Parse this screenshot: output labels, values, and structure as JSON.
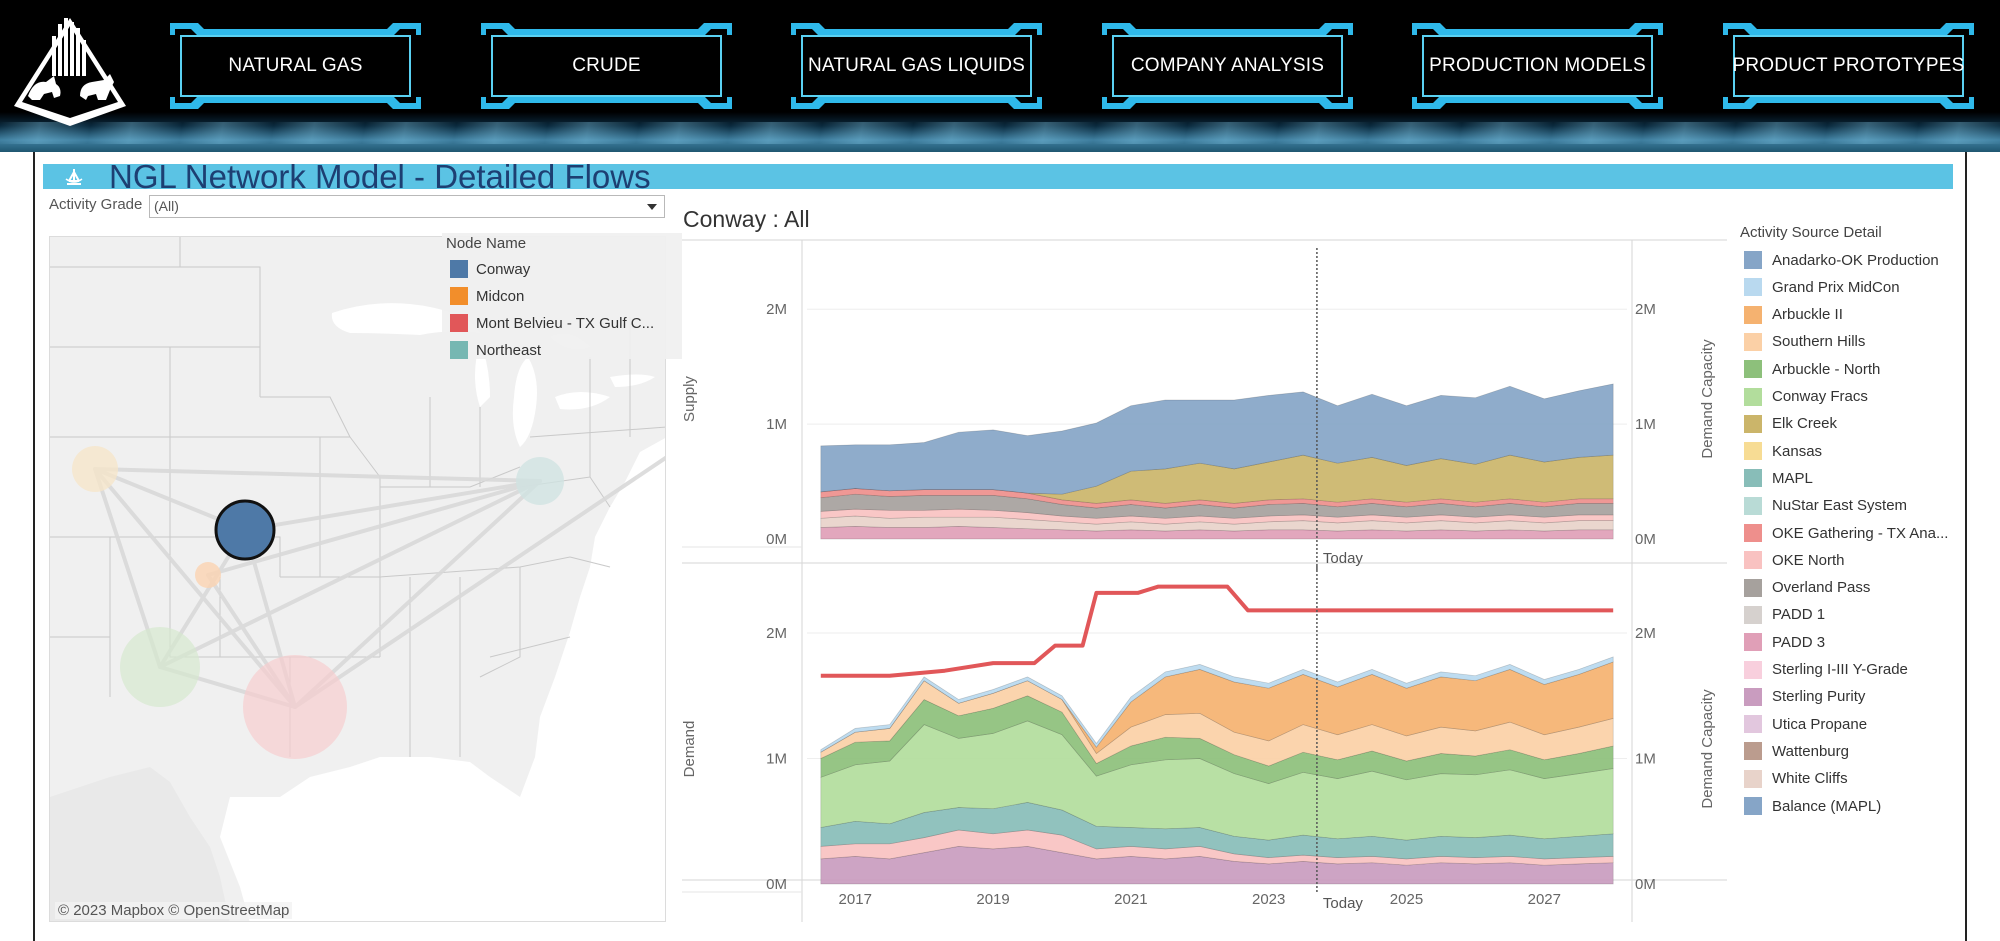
{
  "nav": {
    "items": [
      {
        "label": "NATURAL GAS"
      },
      {
        "label": "CRUDE"
      },
      {
        "label": "NATURAL GAS LIQUIDS"
      },
      {
        "label": "COMPANY ANALYSIS"
      },
      {
        "label": "PRODUCTION MODELS"
      },
      {
        "label": "PRODUCT PROTOTYPES"
      }
    ]
  },
  "dashboard": {
    "title": "NGL Network Model - Detailed Flows",
    "filter": {
      "label": "Activity Grade",
      "value": "(All)"
    },
    "map": {
      "attribution": "© 2023 Mapbox  © OpenStreetMap"
    },
    "node_legend": {
      "title": "Node Name",
      "items": [
        {
          "label": "Conway",
          "color": "#4e79a7"
        },
        {
          "label": "Midcon",
          "color": "#f28e2b"
        },
        {
          "label": "Mont Belvieu - TX Gulf C...",
          "color": "#e15759"
        },
        {
          "label": "Northeast",
          "color": "#76b7b2"
        }
      ]
    },
    "chart_title": "Conway : All",
    "source_legend": {
      "title": "Activity Source Detail",
      "items": [
        {
          "label": "Anadarko-OK Production",
          "color": "#86a5c7"
        },
        {
          "label": "Grand Prix MidCon",
          "color": "#b9d9ef"
        },
        {
          "label": "Arbuckle II",
          "color": "#f5b270"
        },
        {
          "label": "Southern Hills",
          "color": "#fbd0a6"
        },
        {
          "label": "Arbuckle - North",
          "color": "#8dc07b"
        },
        {
          "label": "Conway Fracs",
          "color": "#b2dd9c"
        },
        {
          "label": "Elk Creek",
          "color": "#cbb56a"
        },
        {
          "label": "Kansas",
          "color": "#f7dc94"
        },
        {
          "label": "MAPL",
          "color": "#88bdb8"
        },
        {
          "label": "NuStar East System",
          "color": "#b9dbd6"
        },
        {
          "label": "OKE Gathering - TX Ana...",
          "color": "#ee8f8c"
        },
        {
          "label": "OKE North",
          "color": "#f9c2c1"
        },
        {
          "label": "Overland Pass",
          "color": "#a6a19d"
        },
        {
          "label": "PADD 1",
          "color": "#d6d1ce"
        },
        {
          "label": "PADD 3",
          "color": "#e09fb7"
        },
        {
          "label": "Sterling I-III Y-Grade",
          "color": "#f8cfdd"
        },
        {
          "label": "Sterling Purity",
          "color": "#c99cbf"
        },
        {
          "label": "Utica Propane",
          "color": "#e2c7de"
        },
        {
          "label": "Wattenburg",
          "color": "#bb9c8e"
        },
        {
          "label": "White Cliffs",
          "color": "#e8d3ca"
        },
        {
          "label": "Balance (MAPL)",
          "color": "#86a5c7"
        }
      ]
    }
  },
  "chart_data": {
    "type": "area",
    "title": "Conway : All",
    "x_ticks": [
      "2017",
      "2019",
      "2021",
      "2023",
      "2025",
      "2027"
    ],
    "x_range": [
      2016.3,
      2028.2
    ],
    "today_label": "Today",
    "today_x": 2023.7,
    "panels": [
      {
        "name": "Supply",
        "ylabel": "Supply",
        "ylabel_right": "Demand Capacity",
        "yticks": [
          "2M",
          "1M",
          "0M"
        ],
        "ylim": [
          -0.2,
          2.55
        ],
        "x": [
          2016.5,
          2017.0,
          2017.5,
          2018.0,
          2018.5,
          2019.0,
          2019.5,
          2020.0,
          2020.5,
          2021.0,
          2021.5,
          2022.0,
          2022.5,
          2023.0,
          2023.5,
          2024.0,
          2024.5,
          2025.0,
          2025.5,
          2026.0,
          2026.5,
          2027.0,
          2027.5,
          2028.0
        ],
        "series": [
          {
            "name": "PADD 3",
            "values": [
              0.1,
              0.11,
              0.1,
              0.1,
              0.11,
              0.1,
              0.09,
              0.08,
              0.07,
              0.08,
              0.07,
              0.08,
              0.07,
              0.08,
              0.08,
              0.07,
              0.08,
              0.07,
              0.08,
              0.07,
              0.08,
              0.07,
              0.08,
              0.08
            ]
          },
          {
            "name": "White Cliffs",
            "values": [
              0.08,
              0.09,
              0.08,
              0.09,
              0.08,
              0.09,
              0.08,
              0.07,
              0.06,
              0.07,
              0.06,
              0.07,
              0.06,
              0.07,
              0.08,
              0.07,
              0.08,
              0.07,
              0.08,
              0.07,
              0.08,
              0.07,
              0.08,
              0.08
            ]
          },
          {
            "name": "OKE North",
            "values": [
              0.06,
              0.06,
              0.07,
              0.06,
              0.07,
              0.06,
              0.06,
              0.05,
              0.05,
              0.05,
              0.05,
              0.05,
              0.05,
              0.05,
              0.05,
              0.05,
              0.05,
              0.05,
              0.05,
              0.05,
              0.05,
              0.05,
              0.05,
              0.05
            ]
          },
          {
            "name": "Overland Pass",
            "values": [
              0.12,
              0.13,
              0.12,
              0.13,
              0.12,
              0.13,
              0.12,
              0.1,
              0.09,
              0.1,
              0.09,
              0.1,
              0.09,
              0.1,
              0.1,
              0.09,
              0.1,
              0.09,
              0.1,
              0.09,
              0.1,
              0.09,
              0.1,
              0.1
            ]
          },
          {
            "name": "OKE Gathering - TX Ana...",
            "values": [
              0.05,
              0.05,
              0.05,
              0.05,
              0.05,
              0.05,
              0.05,
              0.04,
              0.04,
              0.04,
              0.04,
              0.04,
              0.04,
              0.04,
              0.04,
              0.04,
              0.04,
              0.04,
              0.04,
              0.04,
              0.04,
              0.04,
              0.04,
              0.04
            ]
          },
          {
            "name": "Elk Creek",
            "values": [
              0.0,
              0.0,
              0.0,
              0.0,
              0.0,
              0.0,
              0.0,
              0.05,
              0.15,
              0.25,
              0.3,
              0.32,
              0.3,
              0.33,
              0.38,
              0.34,
              0.36,
              0.32,
              0.35,
              0.33,
              0.38,
              0.35,
              0.36,
              0.38
            ]
          },
          {
            "name": "Anadarko-OK Production",
            "values": [
              0.4,
              0.38,
              0.4,
              0.41,
              0.5,
              0.52,
              0.5,
              0.55,
              0.55,
              0.57,
              0.6,
              0.55,
              0.6,
              0.58,
              0.55,
              0.5,
              0.55,
              0.52,
              0.55,
              0.58,
              0.6,
              0.55,
              0.58,
              0.62
            ]
          }
        ]
      },
      {
        "name": "Demand",
        "ylabel": "Demand",
        "ylabel_right": "Demand Capacity",
        "yticks": [
          "2M",
          "1M",
          "0M"
        ],
        "ylim": [
          0,
          2.55
        ],
        "x": [
          2016.5,
          2017.0,
          2017.5,
          2018.0,
          2018.5,
          2019.0,
          2019.5,
          2020.0,
          2020.5,
          2021.0,
          2021.5,
          2022.0,
          2022.5,
          2023.0,
          2023.5,
          2024.0,
          2024.5,
          2025.0,
          2025.5,
          2026.0,
          2026.5,
          2027.0,
          2027.5,
          2028.0
        ],
        "series": [
          {
            "name": "Sterling Purity",
            "values": [
              0.2,
              0.22,
              0.2,
              0.25,
              0.3,
              0.28,
              0.3,
              0.25,
              0.2,
              0.22,
              0.2,
              0.22,
              0.18,
              0.16,
              0.18,
              0.16,
              0.17,
              0.15,
              0.17,
              0.16,
              0.17,
              0.15,
              0.16,
              0.17
            ]
          },
          {
            "name": "OKE North",
            "values": [
              0.1,
              0.1,
              0.12,
              0.12,
              0.13,
              0.12,
              0.13,
              0.14,
              0.08,
              0.08,
              0.08,
              0.08,
              0.06,
              0.05,
              0.05,
              0.05,
              0.05,
              0.05,
              0.05,
              0.05,
              0.05,
              0.05,
              0.05,
              0.05
            ]
          },
          {
            "name": "MAPL",
            "values": [
              0.15,
              0.18,
              0.16,
              0.2,
              0.18,
              0.2,
              0.22,
              0.2,
              0.18,
              0.15,
              0.16,
              0.15,
              0.14,
              0.14,
              0.16,
              0.15,
              0.16,
              0.15,
              0.16,
              0.16,
              0.17,
              0.16,
              0.17,
              0.18
            ]
          },
          {
            "name": "Conway Fracs",
            "values": [
              0.4,
              0.45,
              0.5,
              0.7,
              0.55,
              0.6,
              0.65,
              0.6,
              0.4,
              0.5,
              0.55,
              0.55,
              0.5,
              0.45,
              0.5,
              0.48,
              0.52,
              0.48,
              0.5,
              0.5,
              0.52,
              0.48,
              0.5,
              0.52
            ]
          },
          {
            "name": "Arbuckle - North",
            "values": [
              0.15,
              0.18,
              0.16,
              0.2,
              0.18,
              0.2,
              0.2,
              0.18,
              0.1,
              0.15,
              0.18,
              0.16,
              0.15,
              0.14,
              0.16,
              0.15,
              0.16,
              0.15,
              0.16,
              0.15,
              0.16,
              0.15,
              0.16,
              0.18
            ]
          },
          {
            "name": "Southern Hills",
            "values": [
              0.05,
              0.08,
              0.1,
              0.15,
              0.1,
              0.12,
              0.12,
              0.1,
              0.08,
              0.15,
              0.18,
              0.2,
              0.18,
              0.2,
              0.22,
              0.2,
              0.21,
              0.2,
              0.21,
              0.2,
              0.22,
              0.2,
              0.21,
              0.22
            ]
          },
          {
            "name": "Arbuckle II",
            "values": [
              0.0,
              0.0,
              0.0,
              0.0,
              0.0,
              0.0,
              0.0,
              0.0,
              0.05,
              0.2,
              0.3,
              0.35,
              0.4,
              0.42,
              0.4,
              0.38,
              0.4,
              0.38,
              0.4,
              0.4,
              0.42,
              0.4,
              0.42,
              0.45
            ]
          },
          {
            "name": "Grand Prix MidCon",
            "values": [
              0.02,
              0.03,
              0.03,
              0.03,
              0.03,
              0.03,
              0.03,
              0.03,
              0.03,
              0.04,
              0.04,
              0.04,
              0.04,
              0.04,
              0.04,
              0.04,
              0.04,
              0.04,
              0.04,
              0.04,
              0.04,
              0.04,
              0.04,
              0.04
            ]
          }
        ],
        "capacity_line": {
          "name": "Demand Capacity",
          "color": "#e15759",
          "points": [
            [
              2016.5,
              1.66
            ],
            [
              2017.5,
              1.66
            ],
            [
              2018.3,
              1.7
            ],
            [
              2019.0,
              1.76
            ],
            [
              2019.6,
              1.76
            ],
            [
              2019.9,
              1.9
            ],
            [
              2020.3,
              1.9
            ],
            [
              2020.5,
              2.32
            ],
            [
              2021.1,
              2.32
            ],
            [
              2021.4,
              2.37
            ],
            [
              2022.4,
              2.37
            ],
            [
              2022.7,
              2.18
            ],
            [
              2028.0,
              2.18
            ]
          ]
        }
      }
    ]
  }
}
